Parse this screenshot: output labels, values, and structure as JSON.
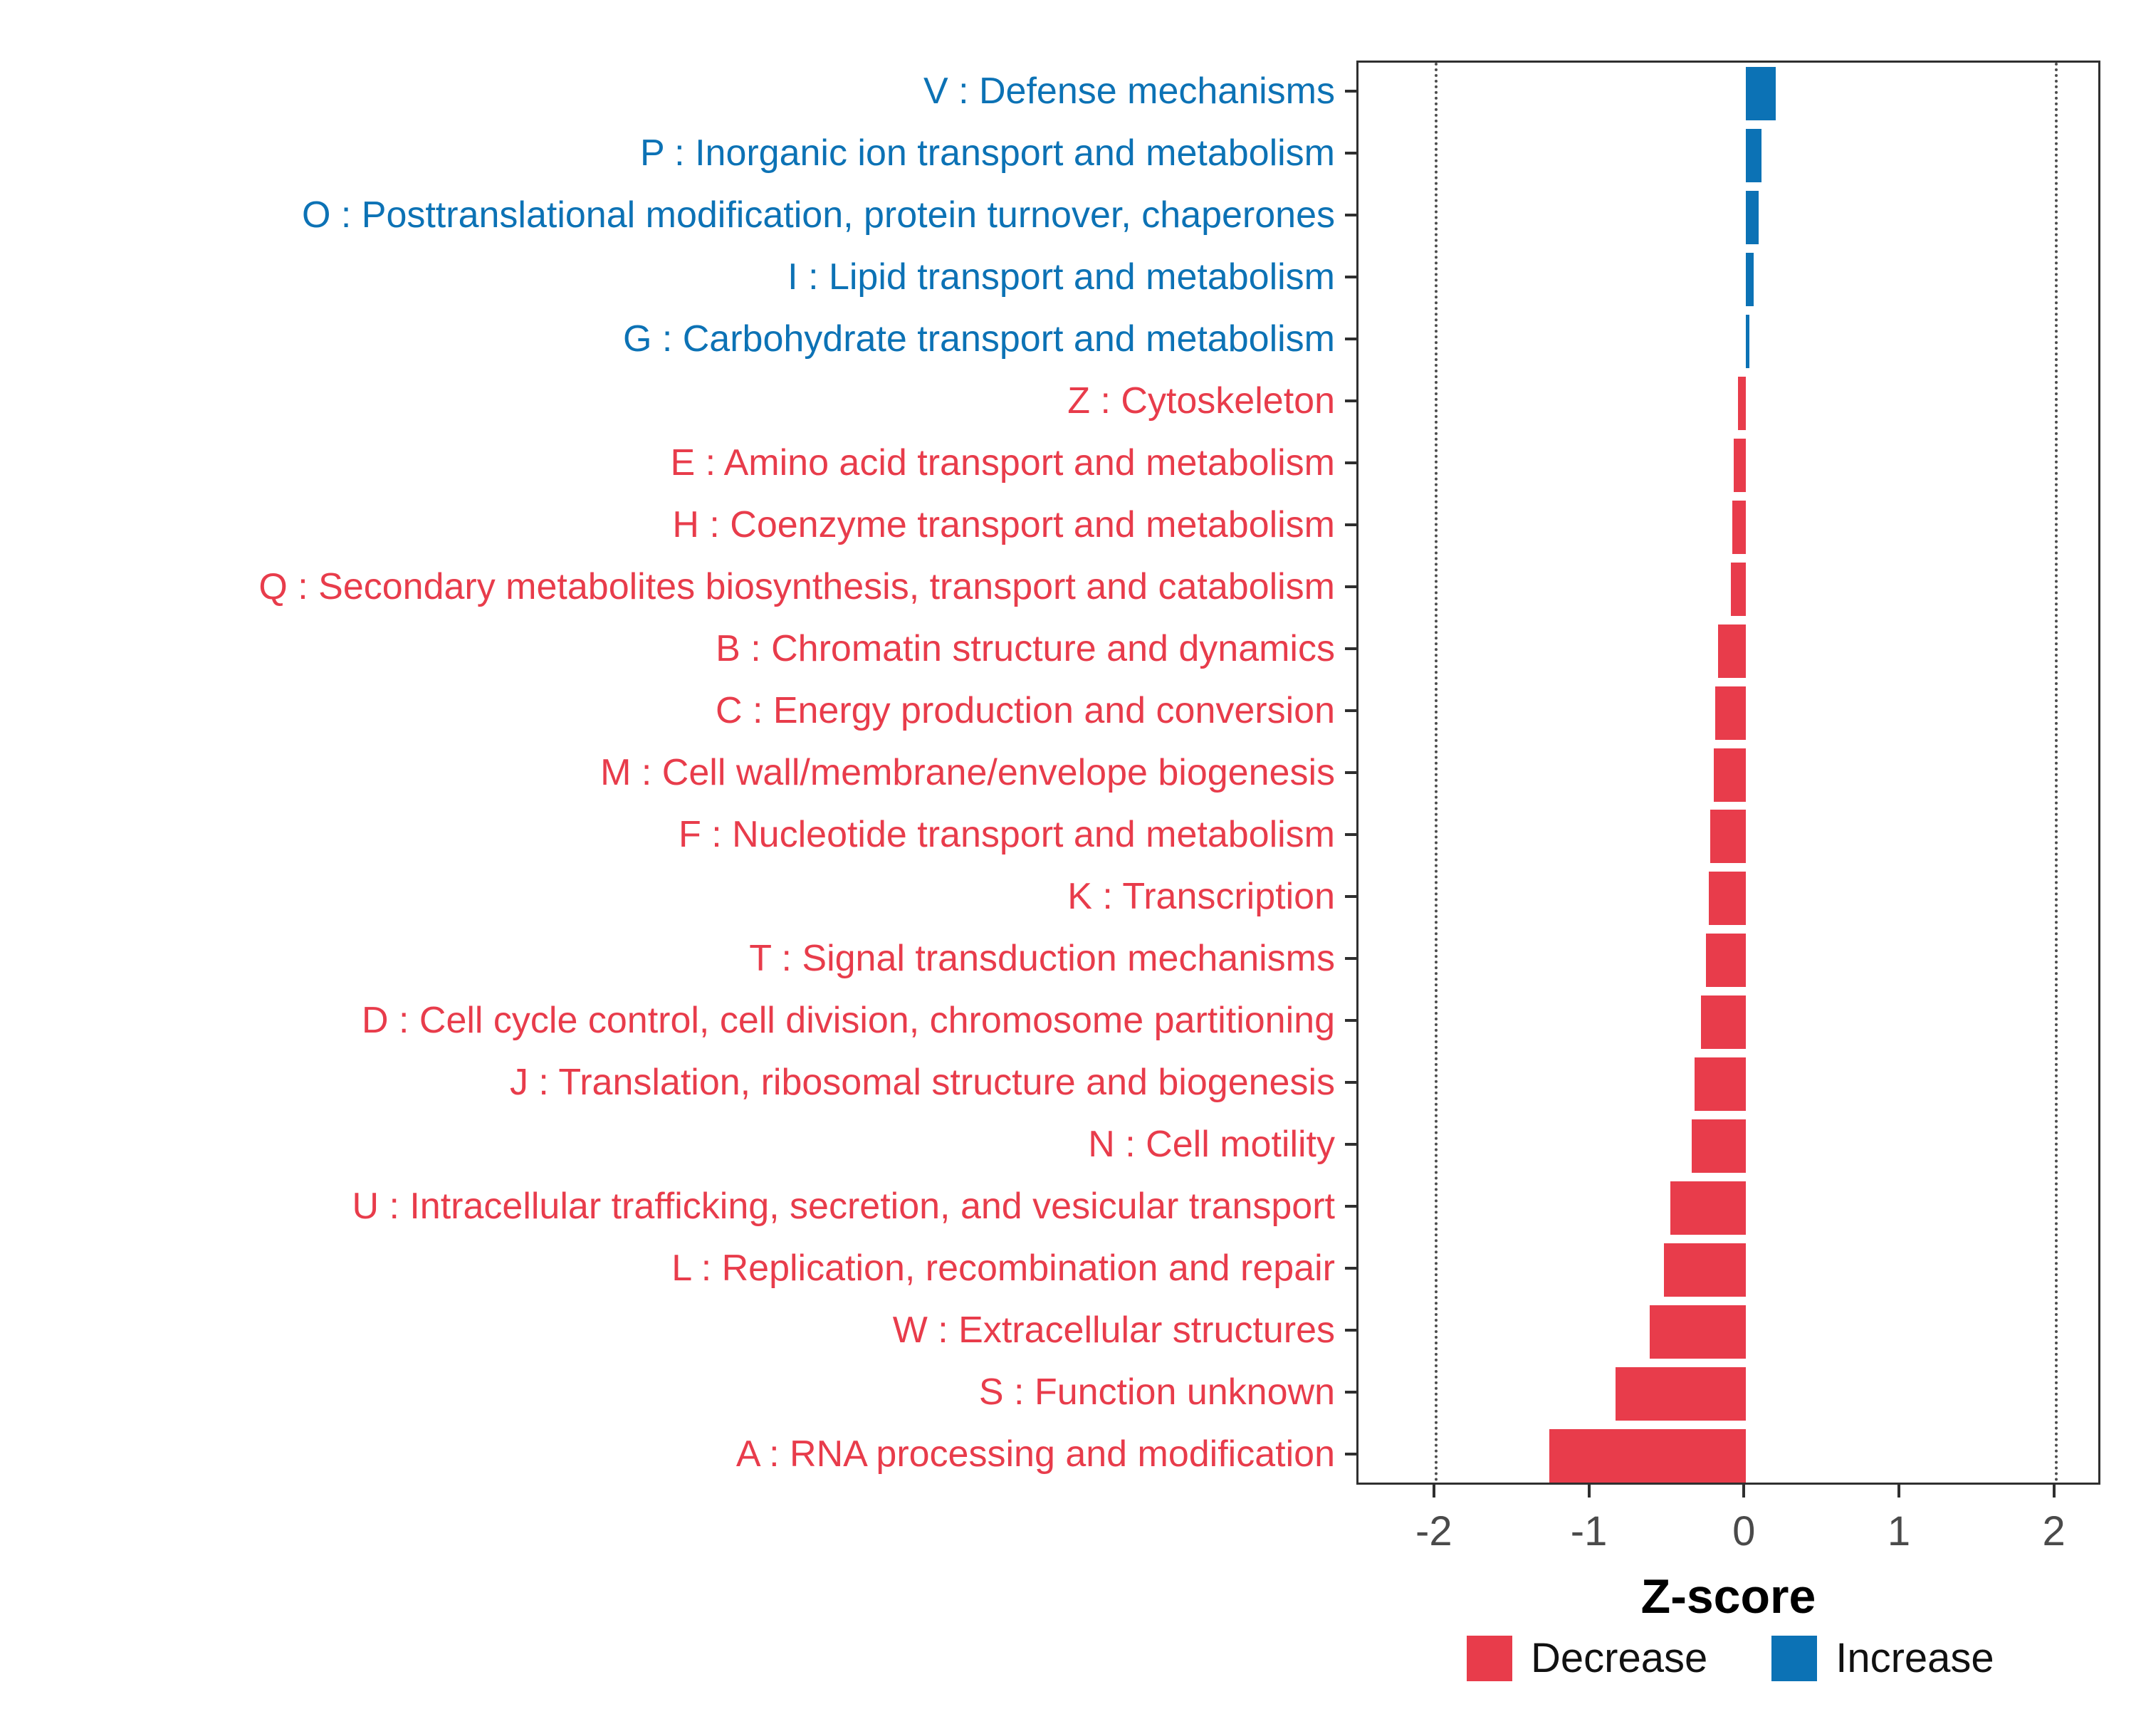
{
  "chart_data": {
    "type": "bar",
    "orientation": "horizontal",
    "title": "",
    "xlabel": "Z-score",
    "xlim": [
      -2.5,
      2.3
    ],
    "x_ticks": [
      -2,
      -1,
      0,
      1,
      2
    ],
    "reference_lines": [
      -2,
      2
    ],
    "grid": false,
    "legend_position": "bottom",
    "colors": {
      "Decrease": "#E83C4B",
      "Increase": "#0C72B5"
    },
    "legend": [
      {
        "label": "Decrease",
        "group": "Decrease"
      },
      {
        "label": "Increase",
        "group": "Increase"
      }
    ],
    "bars": [
      {
        "label": "V : Defense mechanisms",
        "value": 0.19,
        "group": "Increase"
      },
      {
        "label": "P : Inorganic ion transport and metabolism",
        "value": 0.1,
        "group": "Increase"
      },
      {
        "label": "O : Posttranslational modification, protein turnover, chaperones",
        "value": 0.08,
        "group": "Increase"
      },
      {
        "label": "I : Lipid transport and metabolism",
        "value": 0.05,
        "group": "Increase"
      },
      {
        "label": "G : Carbohydrate transport and metabolism",
        "value": 0.02,
        "group": "Increase"
      },
      {
        "label": "Z : Cytoskeleton",
        "value": -0.05,
        "group": "Decrease"
      },
      {
        "label": "E : Amino acid transport and metabolism",
        "value": -0.08,
        "group": "Decrease"
      },
      {
        "label": "H : Coenzyme transport and metabolism",
        "value": -0.09,
        "group": "Decrease"
      },
      {
        "label": "Q : Secondary metabolites biosynthesis, transport and catabolism",
        "value": -0.1,
        "group": "Decrease"
      },
      {
        "label": "B : Chromatin structure and dynamics",
        "value": -0.18,
        "group": "Decrease"
      },
      {
        "label": "C : Energy production and conversion",
        "value": -0.2,
        "group": "Decrease"
      },
      {
        "label": "M : Cell wall/membrane/envelope biogenesis",
        "value": -0.21,
        "group": "Decrease"
      },
      {
        "label": "F : Nucleotide transport and metabolism",
        "value": -0.23,
        "group": "Decrease"
      },
      {
        "label": "K : Transcription",
        "value": -0.24,
        "group": "Decrease"
      },
      {
        "label": "T : Signal transduction mechanisms",
        "value": -0.26,
        "group": "Decrease"
      },
      {
        "label": "D : Cell cycle control, cell division, chromosome partitioning",
        "value": -0.29,
        "group": "Decrease"
      },
      {
        "label": "J : Translation, ribosomal structure and biogenesis",
        "value": -0.33,
        "group": "Decrease"
      },
      {
        "label": "N : Cell motility",
        "value": -0.35,
        "group": "Decrease"
      },
      {
        "label": "U : Intracellular trafficking, secretion, and vesicular transport",
        "value": -0.49,
        "group": "Decrease"
      },
      {
        "label": "L : Replication, recombination and repair",
        "value": -0.53,
        "group": "Decrease"
      },
      {
        "label": "W : Extracellular structures",
        "value": -0.62,
        "group": "Decrease"
      },
      {
        "label": "S : Function unknown",
        "value": -0.84,
        "group": "Decrease"
      },
      {
        "label": "A : RNA processing and modification",
        "value": -1.27,
        "group": "Decrease"
      }
    ]
  }
}
